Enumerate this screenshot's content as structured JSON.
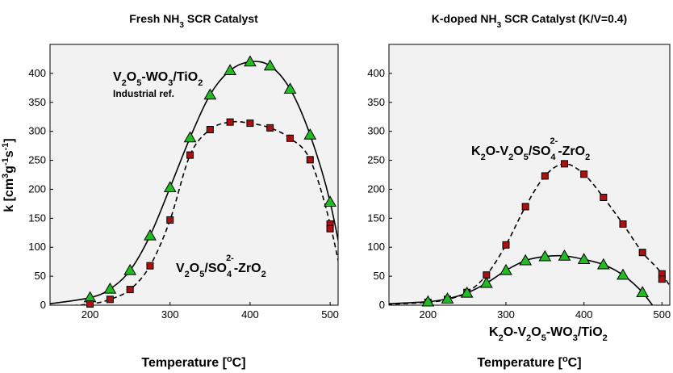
{
  "chart_data": [
    {
      "type": "line",
      "title": "Fresh NH₃ SCR Catalyst",
      "xlabel": "Temperature [°C]",
      "ylabel": "k [cm³g⁻¹s⁻¹]",
      "xlim": [
        150,
        510
      ],
      "ylim": [
        0,
        450
      ],
      "xticks": [
        200,
        300,
        400,
        500
      ],
      "yticks": [
        0,
        50,
        100,
        150,
        200,
        250,
        300,
        350,
        400
      ],
      "grid": false,
      "series": [
        {
          "name": "V₂O₅-WO₃/TiO₂",
          "note": "Industrial ref.",
          "marker": "triangle",
          "marker_color": "#22bb22",
          "line": "solid",
          "x": [
            200,
            225,
            250,
            275,
            300,
            325,
            350,
            375,
            400,
            425,
            450,
            475,
            500
          ],
          "y": [
            13,
            28,
            60,
            120,
            203,
            289,
            363,
            405,
            420,
            413,
            373,
            294,
            178
          ]
        },
        {
          "name": "V₂O₅/SO₄²⁻-ZrO₂",
          "marker": "square",
          "marker_color": "#aa1111",
          "line": "dashed",
          "x": [
            200,
            225,
            250,
            275,
            300,
            325,
            350,
            375,
            400,
            425,
            450,
            475,
            500,
            500
          ],
          "y": [
            2,
            10,
            27,
            68,
            147,
            259,
            303,
            316,
            314,
            306,
            288,
            251,
            140,
            132
          ]
        }
      ]
    },
    {
      "type": "line",
      "title": "K-doped NH₃ SCR Catalyst (K/V=0.4)",
      "xlabel": "Temperature [°C]",
      "ylabel": "",
      "xlim": [
        150,
        510
      ],
      "ylim": [
        0,
        450
      ],
      "xticks": [
        200,
        300,
        400,
        500
      ],
      "yticks": [
        0,
        50,
        100,
        150,
        200,
        250,
        300,
        350,
        400
      ],
      "grid": false,
      "series": [
        {
          "name": "K₂O-V₂O₅/SO₄²⁻-ZrO₂",
          "marker": "square",
          "marker_color": "#aa1111",
          "line": "dashed",
          "x": [
            200,
            225,
            250,
            275,
            300,
            325,
            350,
            375,
            400,
            425,
            450,
            475,
            500,
            500
          ],
          "y": [
            5,
            10,
            22,
            52,
            104,
            170,
            223,
            244,
            226,
            186,
            140,
            91,
            54,
            45
          ]
        },
        {
          "name": "K₂O-V₂O₅-WO₃/TiO₂",
          "marker": "triangle",
          "marker_color": "#22bb22",
          "line": "solid",
          "x": [
            200,
            225,
            250,
            275,
            300,
            325,
            350,
            375,
            400,
            425,
            450,
            475
          ],
          "y": [
            6,
            11,
            21,
            38,
            60,
            77,
            84,
            85,
            79,
            70,
            52,
            22
          ]
        }
      ]
    }
  ]
}
